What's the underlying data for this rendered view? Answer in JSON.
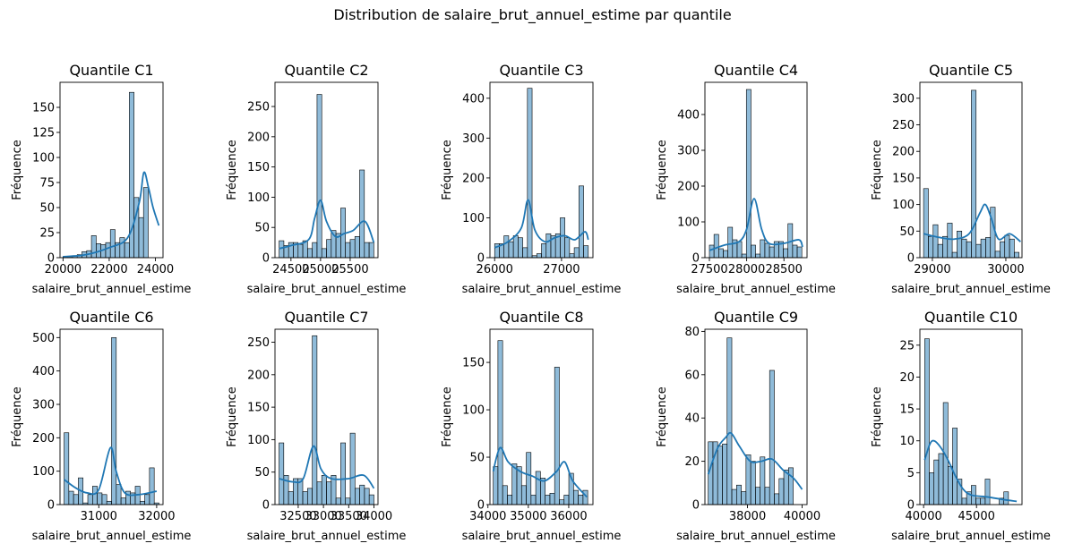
{
  "figure": {
    "suptitle": "Distribution de salaire_brut_annuel_estime par quantile",
    "bar_color": "#1f77b4",
    "bar_alpha": 0.5,
    "kde_color": "#1f77b4"
  },
  "chart_data": [
    {
      "type": "bar",
      "title": "Quantile C1",
      "xlabel": "salaire_brut_annuel_estime",
      "ylabel": "Fréquence",
      "xlim": [
        19870,
        24330
      ],
      "ylim": [
        0,
        175
      ],
      "xticks": [
        20000,
        22000,
        24000
      ],
      "yticks": [
        0,
        25,
        50,
        75,
        100,
        125,
        150
      ],
      "bin_start": 20000,
      "bin_width": 205,
      "values": [
        1,
        1,
        2,
        3,
        6,
        7,
        22,
        14,
        13,
        15,
        28,
        15,
        20,
        15,
        165,
        60,
        40,
        70
      ],
      "kde": [
        [
          20000,
          1
        ],
        [
          21000,
          3
        ],
        [
          22000,
          10
        ],
        [
          22800,
          20
        ],
        [
          23300,
          55
        ],
        [
          23500,
          85
        ],
        [
          23700,
          70
        ],
        [
          23900,
          50
        ],
        [
          24150,
          32
        ]
      ]
    },
    {
      "type": "bar",
      "title": "Quantile C2",
      "xlabel": "salaire_brut_annuel_estime",
      "ylabel": "Fréquence",
      "xlim": [
        24230,
        25970
      ],
      "ylim": [
        0,
        290
      ],
      "xticks": [
        24500,
        25000,
        25500
      ],
      "yticks": [
        0,
        50,
        100,
        150,
        200,
        250
      ],
      "bin_start": 24300,
      "bin_width": 80,
      "values": [
        28,
        20,
        25,
        25,
        22,
        28,
        15,
        25,
        270,
        15,
        30,
        45,
        40,
        82,
        25,
        30,
        35,
        145,
        25,
        25
      ],
      "kde": [
        [
          24300,
          15
        ],
        [
          24500,
          20
        ],
        [
          24800,
          30
        ],
        [
          24900,
          65
        ],
        [
          25000,
          95
        ],
        [
          25100,
          60
        ],
        [
          25250,
          35
        ],
        [
          25400,
          40
        ],
        [
          25550,
          45
        ],
        [
          25750,
          60
        ],
        [
          25900,
          25
        ]
      ]
    },
    {
      "type": "bar",
      "title": "Quantile C3",
      "xlabel": "salaire_brut_annuel_estime",
      "ylabel": "Fréquence",
      "xlim": [
        25930,
        27470
      ],
      "ylim": [
        0,
        440
      ],
      "xticks": [
        26000,
        27000
      ],
      "yticks": [
        0,
        100,
        200,
        300,
        400
      ],
      "bin_start": 26000,
      "bin_width": 70,
      "values": [
        35,
        35,
        55,
        40,
        55,
        50,
        25,
        425,
        5,
        10,
        35,
        60,
        55,
        60,
        100,
        50,
        10,
        25,
        180,
        30
      ],
      "kde": [
        [
          26000,
          25
        ],
        [
          26200,
          40
        ],
        [
          26400,
          75
        ],
        [
          26500,
          145
        ],
        [
          26600,
          70
        ],
        [
          26750,
          40
        ],
        [
          26900,
          50
        ],
        [
          27050,
          55
        ],
        [
          27200,
          45
        ],
        [
          27350,
          65
        ],
        [
          27400,
          45
        ]
      ]
    },
    {
      "type": "bar",
      "title": "Quantile C4",
      "xlabel": "salaire_brut_annuel_estime",
      "ylabel": "Fréquence",
      "xlim": [
        27440,
        28810
      ],
      "ylim": [
        0,
        490
      ],
      "xticks": [
        27500,
        28000,
        28500
      ],
      "yticks": [
        0,
        100,
        200,
        300,
        400
      ],
      "bin_start": 27500,
      "bin_width": 62,
      "values": [
        35,
        65,
        25,
        20,
        85,
        50,
        45,
        10,
        470,
        35,
        10,
        50,
        40,
        30,
        45,
        45,
        25,
        95,
        35,
        30
      ],
      "kde": [
        [
          27500,
          20
        ],
        [
          27700,
          35
        ],
        [
          27900,
          45
        ],
        [
          28000,
          80
        ],
        [
          28100,
          165
        ],
        [
          28200,
          80
        ],
        [
          28300,
          40
        ],
        [
          28500,
          40
        ],
        [
          28700,
          50
        ],
        [
          28750,
          30
        ]
      ]
    },
    {
      "type": "bar",
      "title": "Quantile C5",
      "xlabel": "salaire_brut_annuel_estime",
      "ylabel": "Fréquence",
      "xlim": [
        28830,
        30220
      ],
      "ylim": [
        0,
        330
      ],
      "xticks": [
        29000,
        30000
      ],
      "yticks": [
        0,
        50,
        100,
        150,
        200,
        250,
        300
      ],
      "bin_start": 28880,
      "bin_width": 65,
      "values": [
        130,
        40,
        62,
        25,
        40,
        65,
        10,
        50,
        35,
        30,
        315,
        25,
        35,
        38,
        95,
        12,
        30,
        42,
        35,
        10
      ],
      "kde": [
        [
          28880,
          45
        ],
        [
          29100,
          38
        ],
        [
          29300,
          35
        ],
        [
          29500,
          45
        ],
        [
          29650,
          85
        ],
        [
          29720,
          100
        ],
        [
          29800,
          75
        ],
        [
          29900,
          35
        ],
        [
          30050,
          45
        ],
        [
          30200,
          30
        ]
      ]
    },
    {
      "type": "bar",
      "title": "Quantile C6",
      "xlabel": "salaire_brut_annuel_estime",
      "ylabel": "Fréquence",
      "xlim": [
        30330,
        32110
      ],
      "ylim": [
        0,
        525
      ],
      "xticks": [
        31000,
        32000
      ],
      "yticks": [
        0,
        100,
        200,
        300,
        400,
        500
      ],
      "bin_start": 30400,
      "bin_width": 82,
      "values": [
        215,
        40,
        30,
        80,
        5,
        30,
        55,
        35,
        30,
        10,
        500,
        60,
        20,
        40,
        35,
        55,
        10,
        30,
        110,
        5
      ],
      "kde": [
        [
          30400,
          75
        ],
        [
          30600,
          50
        ],
        [
          30800,
          35
        ],
        [
          31000,
          45
        ],
        [
          31200,
          170
        ],
        [
          31300,
          100
        ],
        [
          31450,
          35
        ],
        [
          31700,
          30
        ],
        [
          32000,
          40
        ]
      ]
    },
    {
      "type": "bar",
      "title": "Quantile C7",
      "xlabel": "salaire_brut_annuel_estime",
      "ylabel": "Fréquence",
      "xlim": [
        32040,
        34080
      ],
      "ylim": [
        0,
        270
      ],
      "xticks": [
        32500,
        33000,
        33500,
        34000
      ],
      "yticks": [
        0,
        50,
        100,
        150,
        200,
        250
      ],
      "bin_start": 32120,
      "bin_width": 94,
      "values": [
        95,
        45,
        20,
        40,
        40,
        20,
        25,
        260,
        35,
        45,
        35,
        45,
        10,
        95,
        10,
        110,
        25,
        30,
        25,
        15
      ],
      "kde": [
        [
          32120,
          40
        ],
        [
          32400,
          35
        ],
        [
          32600,
          40
        ],
        [
          32800,
          90
        ],
        [
          32950,
          55
        ],
        [
          33150,
          40
        ],
        [
          33500,
          40
        ],
        [
          33800,
          45
        ],
        [
          34000,
          25
        ]
      ]
    },
    {
      "type": "bar",
      "title": "Quantile C8",
      "xlabel": "salaire_brut_annuel_estime",
      "ylabel": "Fréquence",
      "xlim": [
        34050,
        36600
      ],
      "ylim": [
        0,
        185
      ],
      "xticks": [
        34000,
        35000,
        36000
      ],
      "yticks": [
        0,
        50,
        100,
        150
      ],
      "bin_start": 34130,
      "bin_width": 117,
      "values": [
        40,
        173,
        20,
        10,
        43,
        40,
        20,
        55,
        10,
        35,
        28,
        10,
        12,
        145,
        5,
        10,
        33,
        15,
        10,
        15
      ],
      "kde": [
        [
          34130,
          35
        ],
        [
          34300,
          60
        ],
        [
          34500,
          45
        ],
        [
          34800,
          35
        ],
        [
          35100,
          30
        ],
        [
          35400,
          25
        ],
        [
          35700,
          35
        ],
        [
          35900,
          45
        ],
        [
          36100,
          25
        ],
        [
          36450,
          8
        ]
      ]
    },
    {
      "type": "bar",
      "title": "Quantile C9",
      "xlabel": "salaire_brut_annuel_estime",
      "ylabel": "Fréquence",
      "xlim": [
        36440,
        40180
      ],
      "ylim": [
        0,
        81
      ],
      "xticks": [
        38000,
        40000
      ],
      "yticks": [
        0,
        20,
        40,
        60,
        80
      ],
      "bin_start": 36560,
      "bin_width": 173,
      "values": [
        29,
        29,
        27,
        28,
        77,
        7,
        9,
        6,
        23,
        20,
        8,
        22,
        8,
        62,
        5,
        12,
        16,
        17
      ],
      "kde": [
        [
          36560,
          14
        ],
        [
          36900,
          26
        ],
        [
          37200,
          31
        ],
        [
          37400,
          33
        ],
        [
          37700,
          27
        ],
        [
          38100,
          20
        ],
        [
          38500,
          20
        ],
        [
          38900,
          21
        ],
        [
          39300,
          16
        ],
        [
          39700,
          12
        ],
        [
          40000,
          7
        ]
      ]
    },
    {
      "type": "bar",
      "title": "Quantile C10",
      "xlabel": "salaire_brut_annuel_estime",
      "ylabel": "Fréquence",
      "xlim": [
        39650,
        49300
      ],
      "ylim": [
        0,
        27.5
      ],
      "xticks": [
        40000,
        45000
      ],
      "yticks": [
        0,
        5,
        10,
        15,
        20,
        25
      ],
      "bin_start": 40100,
      "bin_width": 440,
      "values": [
        26,
        5,
        7,
        8,
        16,
        6,
        12,
        4,
        1,
        2,
        3,
        1,
        1,
        4,
        0,
        0,
        1,
        2
      ],
      "kde": [
        [
          40100,
          7
        ],
        [
          40600,
          9.5
        ],
        [
          41000,
          10
        ],
        [
          41600,
          9
        ],
        [
          42300,
          7
        ],
        [
          43000,
          4.5
        ],
        [
          43700,
          2.5
        ],
        [
          44500,
          1.5
        ],
        [
          46000,
          1.2
        ],
        [
          47500,
          0.8
        ],
        [
          48800,
          0.5
        ]
      ]
    }
  ]
}
